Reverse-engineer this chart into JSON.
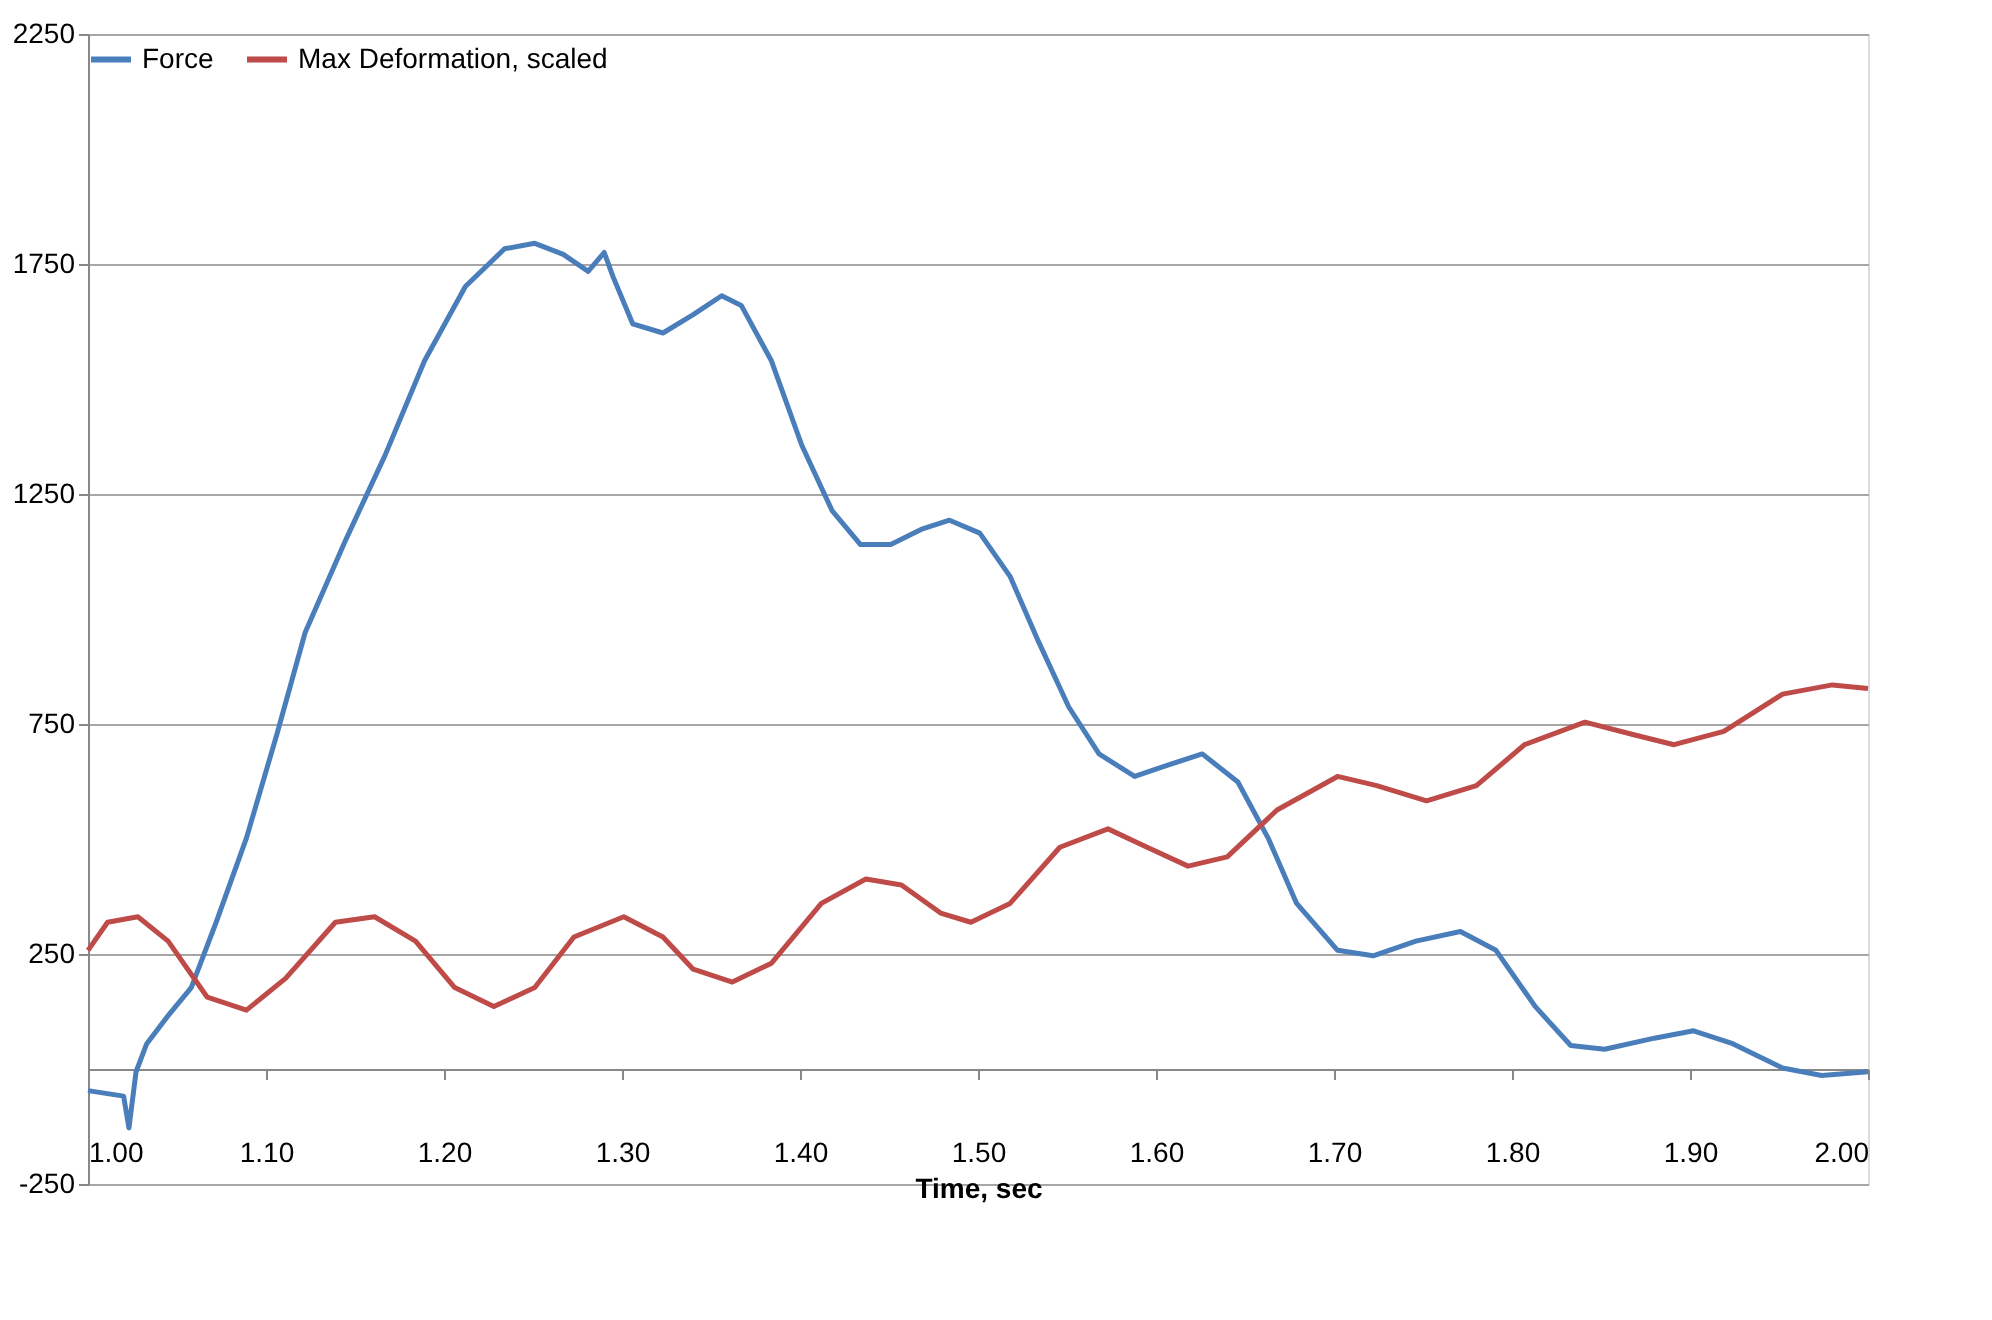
{
  "chart_data": {
    "type": "line",
    "xlabel": "Time, sec",
    "xlim": [
      1.0,
      2.0
    ],
    "xticks": [
      {
        "value": 1.0,
        "label": "1.00"
      },
      {
        "value": 1.1,
        "label": "1.10"
      },
      {
        "value": 1.2,
        "label": "1.20"
      },
      {
        "value": 1.3,
        "label": "1.30"
      },
      {
        "value": 1.4,
        "label": "1.40"
      },
      {
        "value": 1.5,
        "label": "1.50"
      },
      {
        "value": 1.6,
        "label": "1.60"
      },
      {
        "value": 1.7,
        "label": "1.70"
      },
      {
        "value": 1.8,
        "label": "1.80"
      },
      {
        "value": 1.9,
        "label": "1.90"
      },
      {
        "value": 2.0,
        "label": "2.00"
      }
    ],
    "ylim": [
      -250,
      2250
    ],
    "yticks": [
      -250,
      250,
      750,
      1250,
      1750,
      2250
    ],
    "grid": "y",
    "legend": "top",
    "line_style": "solid",
    "marker": "none",
    "series": [
      {
        "name": "Force",
        "color": "#4a7ebb",
        "x": [
          1.0,
          1.02,
          1.023,
          1.027,
          1.033,
          1.045,
          1.058,
          1.072,
          1.089,
          1.106,
          1.122,
          1.145,
          1.167,
          1.189,
          1.212,
          1.234,
          1.251,
          1.267,
          1.281,
          1.29,
          1.295,
          1.306,
          1.323,
          1.34,
          1.356,
          1.367,
          1.384,
          1.401,
          1.418,
          1.434,
          1.451,
          1.468,
          1.484,
          1.501,
          1.518,
          1.534,
          1.551,
          1.568,
          1.588,
          1.607,
          1.626,
          1.646,
          1.663,
          1.679,
          1.702,
          1.722,
          1.746,
          1.771,
          1.791,
          1.813,
          1.833,
          1.852,
          1.88,
          1.902,
          1.924,
          1.952,
          1.974,
          2.0
        ],
        "values": [
          -47,
          -59,
          -128,
          -6,
          55,
          116,
          177,
          319,
          502,
          726,
          949,
          1152,
          1335,
          1539,
          1701,
          1783,
          1795,
          1771,
          1734,
          1775,
          1722,
          1620,
          1600,
          1640,
          1681,
          1660,
          1539,
          1356,
          1214,
          1140,
          1140,
          1173,
          1193,
          1165,
          1071,
          929,
          787,
          685,
          636,
          661,
          685,
          624,
          502,
          360,
          258,
          246,
          278,
          299,
          258,
          136,
          51,
          43,
          67,
          83,
          55,
          2,
          -14,
          -6
        ]
      },
      {
        "name": "Max Deformation, scaled",
        "color": "#be4b48",
        "x": [
          1.0,
          1.011,
          1.028,
          1.045,
          1.067,
          1.089,
          1.111,
          1.139,
          1.161,
          1.184,
          1.206,
          1.228,
          1.251,
          1.273,
          1.301,
          1.323,
          1.34,
          1.362,
          1.384,
          1.412,
          1.437,
          1.457,
          1.479,
          1.496,
          1.518,
          1.546,
          1.573,
          1.595,
          1.618,
          1.64,
          1.668,
          1.702,
          1.724,
          1.752,
          1.78,
          1.807,
          1.841,
          1.869,
          1.891,
          1.919,
          1.952,
          1.98,
          2.0
        ],
        "values": [
          258,
          319,
          331,
          278,
          156,
          128,
          197,
          319,
          331,
          278,
          177,
          136,
          177,
          287,
          331,
          287,
          217,
          189,
          230,
          360,
          413,
          400,
          339,
          319,
          360,
          482,
          522,
          482,
          441,
          461,
          563,
          636,
          616,
          583,
          616,
          705,
          754,
          726,
          705,
          734,
          815,
          835,
          827
        ]
      }
    ]
  }
}
